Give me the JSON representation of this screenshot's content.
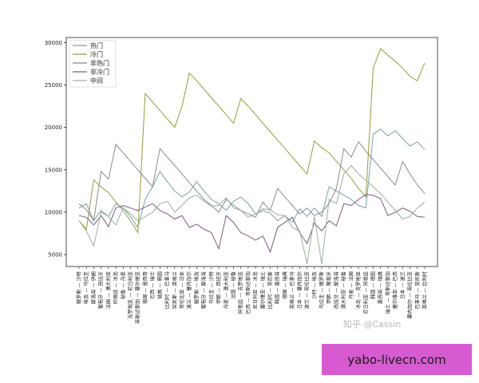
{
  "chart_data": {
    "type": "line",
    "title": "",
    "xlabel": "",
    "ylabel": "",
    "ylim": [
      3600,
      30600
    ],
    "yticks": [
      5000,
      10000,
      15000,
      20000,
      25000,
      30000
    ],
    "grid": false,
    "legend_position": "top-left",
    "categories": [
      "俄罗斯 — 沙特",
      "埃及 — 乌拉圭",
      "摩洛哥 — 伊朗",
      "葡萄牙 — 西班牙",
      "法国 — 澳大利亚",
      "阿根廷 — 冰岛",
      "秘鲁 — 丹麦",
      "克罗地亚 — 尼日利亚",
      "哥斯达黎加 — 塞尔维亚",
      "德国 — 墨西哥",
      "巴西 — 瑞士",
      "瑞典 — 韩国",
      "比利时 — 巴拿马",
      "突尼斯 — 英格兰",
      "哥伦比亚 — 日本",
      "波兰 — 塞内加尔",
      "俄罗斯 — 埃及",
      "葡萄牙 — 摩洛哥",
      "乌拉圭 — 沙特",
      "伊朗 — 西班牙",
      "丹麦 — 澳大利亚",
      "法国 — 秘鲁",
      "阿根廷 — 克罗地亚",
      "巴西 — 哥斯达黎加",
      "尼日利亚 — 冰岛",
      "塞尔维亚 — 瑞士",
      "比利时 — 突尼斯",
      "韩国 — 墨西哥",
      "德国 — 瑞典",
      "英格兰 — 巴拿马",
      "日本 — 塞内加尔",
      "波兰 — 哥伦比亚",
      "沙特 — 埃及",
      "乌拉圭 — 俄罗斯",
      "伊朗 — 葡萄牙",
      "西班牙 — 摩洛哥",
      "澳大利亚 — 秘鲁",
      "丹麦 — 法国",
      "冰岛 — 克罗地亚",
      "尼日利亚 — 阿根廷",
      "韩国 — 德国",
      "墨西哥 — 瑞典",
      "瑞士 — 哥斯达黎加",
      "塞尔维亚 — 巴西",
      "日本 — 波兰",
      "塞内加尔 — 哥伦比亚",
      "巴拿马 — 突尼斯",
      "英格兰 — 比利时"
    ],
    "series": [
      {
        "name": "热门",
        "color": "#7aa0a8",
        "values": [
          10500,
          11000,
          9000,
          10200,
          9500,
          11000,
          10500,
          9500,
          8200,
          11500,
          13000,
          14800,
          13600,
          12500,
          11800,
          12400,
          13600,
          12500,
          11500,
          11000,
          10200,
          11300,
          11800,
          11000,
          9800,
          10200,
          9900,
          9000,
          9600,
          8800,
          10400,
          9500,
          10500,
          9500,
          13000,
          12500,
          12000,
          11500,
          10800,
          10500,
          19200,
          19800,
          19000,
          19600,
          18700,
          17800,
          18300,
          17400
        ]
      },
      {
        "name": "冷门",
        "color": "#9a9a3a",
        "values": [
          9000,
          8000,
          13800,
          13000,
          12300,
          11200,
          10200,
          9000,
          7600,
          24000,
          23000,
          22000,
          21000,
          20000,
          22500,
          26400,
          25500,
          24500,
          23500,
          22500,
          21500,
          20500,
          23400,
          22500,
          21500,
          20500,
          19500,
          18500,
          17500,
          16500,
          15500,
          14500,
          18400,
          17600,
          17000,
          16000,
          15000,
          14000,
          12800,
          11800,
          27000,
          29300,
          28500,
          27800,
          27000,
          26000,
          25500,
          27600
        ]
      },
      {
        "name": "非热门",
        "color": "#8a8a8a",
        "values": [
          11000,
          10300,
          9000,
          14800,
          13900,
          18000,
          17000,
          16000,
          15000,
          14000,
          13000,
          17500,
          16500,
          15500,
          14500,
          13500,
          12500,
          11500,
          10800,
          10000,
          11500,
          10800,
          10200,
          9800,
          9400,
          11200,
          10200,
          12800,
          11800,
          10800,
          9800,
          10500,
          9600,
          10000,
          11000,
          12800,
          17500,
          16500,
          18300,
          17200,
          16200,
          15200,
          14200,
          13200,
          16000,
          14500,
          13200,
          12200
        ]
      },
      {
        "name": "非冷门",
        "color": "#7a5a7a",
        "values": [
          9600,
          9400,
          8500,
          9600,
          8300,
          10500,
          10800,
          10500,
          10200,
          10600,
          11000,
          10200,
          9800,
          9200,
          9600,
          8200,
          8600,
          8000,
          7600,
          5700,
          9600,
          8800,
          7600,
          7200,
          6700,
          7200,
          5300,
          8200,
          8800,
          9400,
          7600,
          6300,
          8700,
          7800,
          9000,
          8400,
          11000,
          10800,
          11500,
          12100,
          12000,
          11600,
          9600,
          10000,
          10500,
          10100,
          9500,
          9400
        ]
      },
      {
        "name": "中间",
        "color": "#9ab09a",
        "values": [
          9000,
          7800,
          6000,
          10000,
          9500,
          8500,
          10500,
          9800,
          9000,
          9500,
          10000,
          11000,
          11300,
          10000,
          10800,
          11700,
          12000,
          11300,
          10700,
          10800,
          11700,
          10500,
          10200,
          9400,
          9800,
          10400,
          10300,
          9700,
          9600,
          8200,
          7800,
          3900,
          9500,
          3900,
          11500,
          11000,
          14500,
          15500,
          14500,
          13800,
          13000,
          12200,
          11200,
          10200,
          9200,
          9500,
          10500,
          11200
        ]
      }
    ]
  },
  "watermark": {
    "text": "知乎 @Cassin"
  },
  "banner": {
    "text": "yabo-livecn.com"
  }
}
